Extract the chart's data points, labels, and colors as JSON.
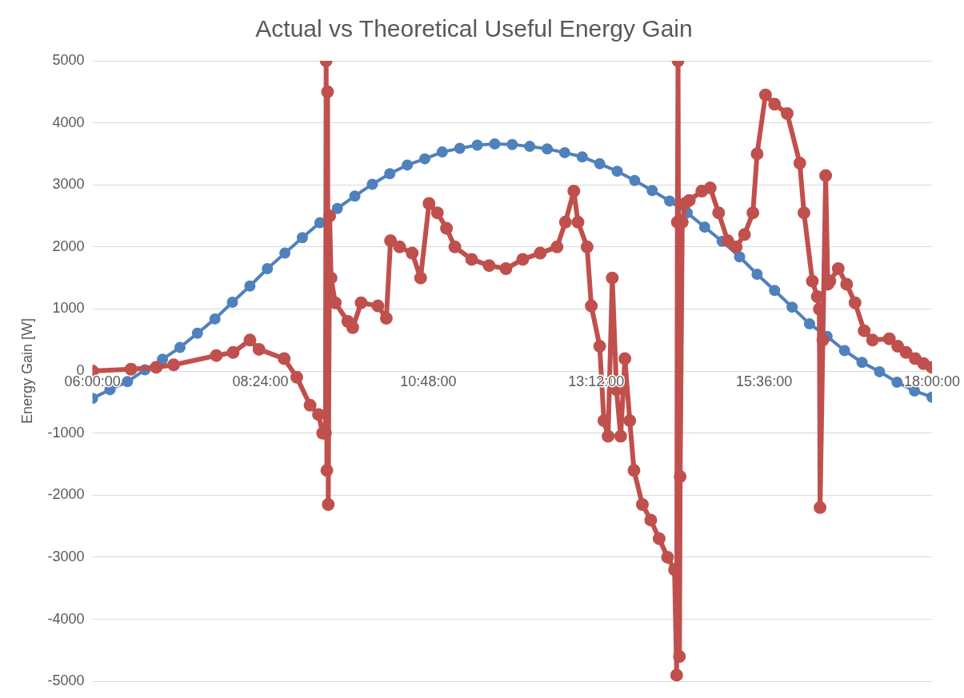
{
  "chart_data": {
    "type": "line",
    "title": "Actual vs Theoretical Useful Energy Gain",
    "ylabel": "Energy Gain [W]",
    "xlim": [
      6,
      18
    ],
    "xticks": [
      {
        "value": 6,
        "label": "06:00:00"
      },
      {
        "value": 8.4,
        "label": "08:24:00"
      },
      {
        "value": 10.8,
        "label": "10:48:00"
      },
      {
        "value": 13.2,
        "label": "13:12:00"
      },
      {
        "value": 15.6,
        "label": "15:36:00"
      },
      {
        "value": 18,
        "label": "18:00:00"
      }
    ],
    "ylim": [
      -5000,
      5000
    ],
    "yticks": [
      -5000,
      -4000,
      -3000,
      -2000,
      -1000,
      0,
      1000,
      2000,
      3000,
      4000,
      5000
    ],
    "grid": "y",
    "legend": false,
    "marker": "circle",
    "line_style": "solid",
    "series": [
      {
        "color": "#c0504d",
        "x": [
          6.0,
          6.55,
          6.91,
          7.16,
          7.77,
          8.01,
          8.25,
          8.38,
          8.74,
          8.92,
          9.11,
          9.23,
          9.29,
          9.33,
          9.34,
          9.35,
          9.36,
          9.37,
          9.39,
          9.41,
          9.47,
          9.65,
          9.72,
          9.84,
          10.08,
          10.2,
          10.26,
          10.39,
          10.57,
          10.69,
          10.81,
          10.93,
          11.06,
          11.18,
          11.42,
          11.67,
          11.91,
          12.15,
          12.4,
          12.64,
          12.76,
          12.88,
          12.94,
          13.07,
          13.13,
          13.25,
          13.31,
          13.37,
          13.43,
          13.49,
          13.55,
          13.61,
          13.68,
          13.74,
          13.86,
          13.98,
          14.1,
          14.22,
          14.32,
          14.35,
          14.36,
          14.37,
          14.39,
          14.4,
          14.43,
          14.47,
          14.53,
          14.71,
          14.83,
          14.95,
          15.08,
          15.2,
          15.32,
          15.44,
          15.5,
          15.62,
          15.75,
          15.93,
          16.11,
          16.17,
          16.29,
          16.36,
          16.39,
          16.4,
          16.44,
          16.48,
          16.51,
          16.54,
          16.66,
          16.78,
          16.9,
          17.03,
          17.15,
          17.39,
          17.51,
          17.63,
          17.76,
          17.88,
          18.0
        ],
        "values": [
          0,
          30,
          60,
          100,
          250,
          300,
          500,
          350,
          200,
          -100,
          -550,
          -700,
          -1000,
          -1000,
          5000,
          -1600,
          4500,
          -2150,
          2500,
          1500,
          1100,
          800,
          700,
          1100,
          1050,
          850,
          2100,
          2000,
          1900,
          1500,
          2700,
          2550,
          2300,
          2000,
          1800,
          1700,
          1650,
          1800,
          1900,
          2000,
          2400,
          2900,
          2400,
          2000,
          1050,
          400,
          -800,
          -1050,
          1500,
          -300,
          -1050,
          200,
          -800,
          -1600,
          -2150,
          -2400,
          -2700,
          -3000,
          -3200,
          -4900,
          2400,
          5000,
          -4600,
          -1700,
          2400,
          2700,
          2750,
          2900,
          2950,
          2550,
          2100,
          2000,
          2200,
          2550,
          3500,
          4450,
          4300,
          4150,
          3350,
          2550,
          1450,
          1200,
          1000,
          -2200,
          500,
          3150,
          1400,
          1450,
          1650,
          1400,
          1100,
          650,
          500,
          520,
          400,
          300,
          200,
          120,
          60
        ]
      },
      {
        "color": "#4f81bd",
        "x": [
          6,
          6.25,
          6.5,
          6.75,
          7,
          7.25,
          7.5,
          7.75,
          8,
          8.25,
          8.5,
          8.75,
          9,
          9.25,
          9.5,
          9.75,
          10,
          10.25,
          10.5,
          10.75,
          11,
          11.25,
          11.5,
          11.75,
          12,
          12.25,
          12.5,
          12.75,
          13,
          13.25,
          13.5,
          13.75,
          14,
          14.25,
          14.5,
          14.75,
          15,
          15.25,
          15.5,
          15.75,
          16,
          16.25,
          16.5,
          16.75,
          17,
          17.25,
          17.5,
          17.75,
          18
        ],
        "values": [
          -440,
          -300,
          -170,
          20,
          190,
          380,
          610,
          840,
          1110,
          1370,
          1650,
          1900,
          2150,
          2390,
          2620,
          2820,
          3010,
          3180,
          3320,
          3420,
          3530,
          3590,
          3640,
          3660,
          3650,
          3620,
          3580,
          3520,
          3450,
          3340,
          3220,
          3070,
          2910,
          2740,
          2550,
          2320,
          2090,
          1840,
          1560,
          1300,
          1030,
          760,
          560,
          330,
          140,
          -10,
          -180,
          -320,
          -420
        ]
      }
    ]
  }
}
